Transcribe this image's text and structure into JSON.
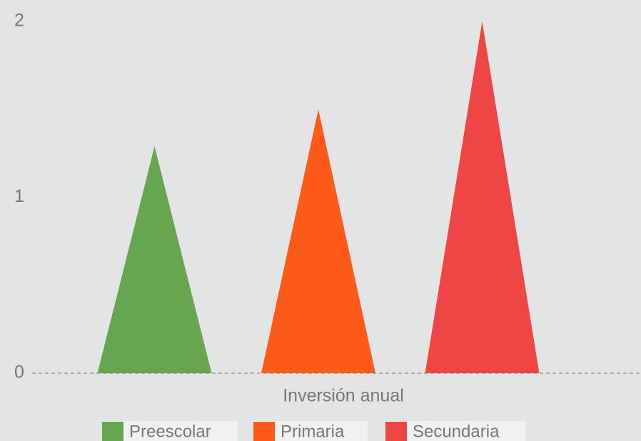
{
  "chart_data": {
    "type": "bar",
    "xlabel": "Inversión anual",
    "categories": [
      "Inversión anual"
    ],
    "series": [
      {
        "name": "Preescolar",
        "color": "#67a64f",
        "values": [
          1.29
        ]
      },
      {
        "name": "Primaria",
        "color": "#fd5a19",
        "values": [
          1.5
        ]
      },
      {
        "name": "Secundaria",
        "color": "#ee4545",
        "values": [
          2
        ]
      }
    ],
    "ylim": [
      0,
      2
    ],
    "yticks": [
      0,
      1,
      2
    ],
    "legend": "bottom"
  }
}
